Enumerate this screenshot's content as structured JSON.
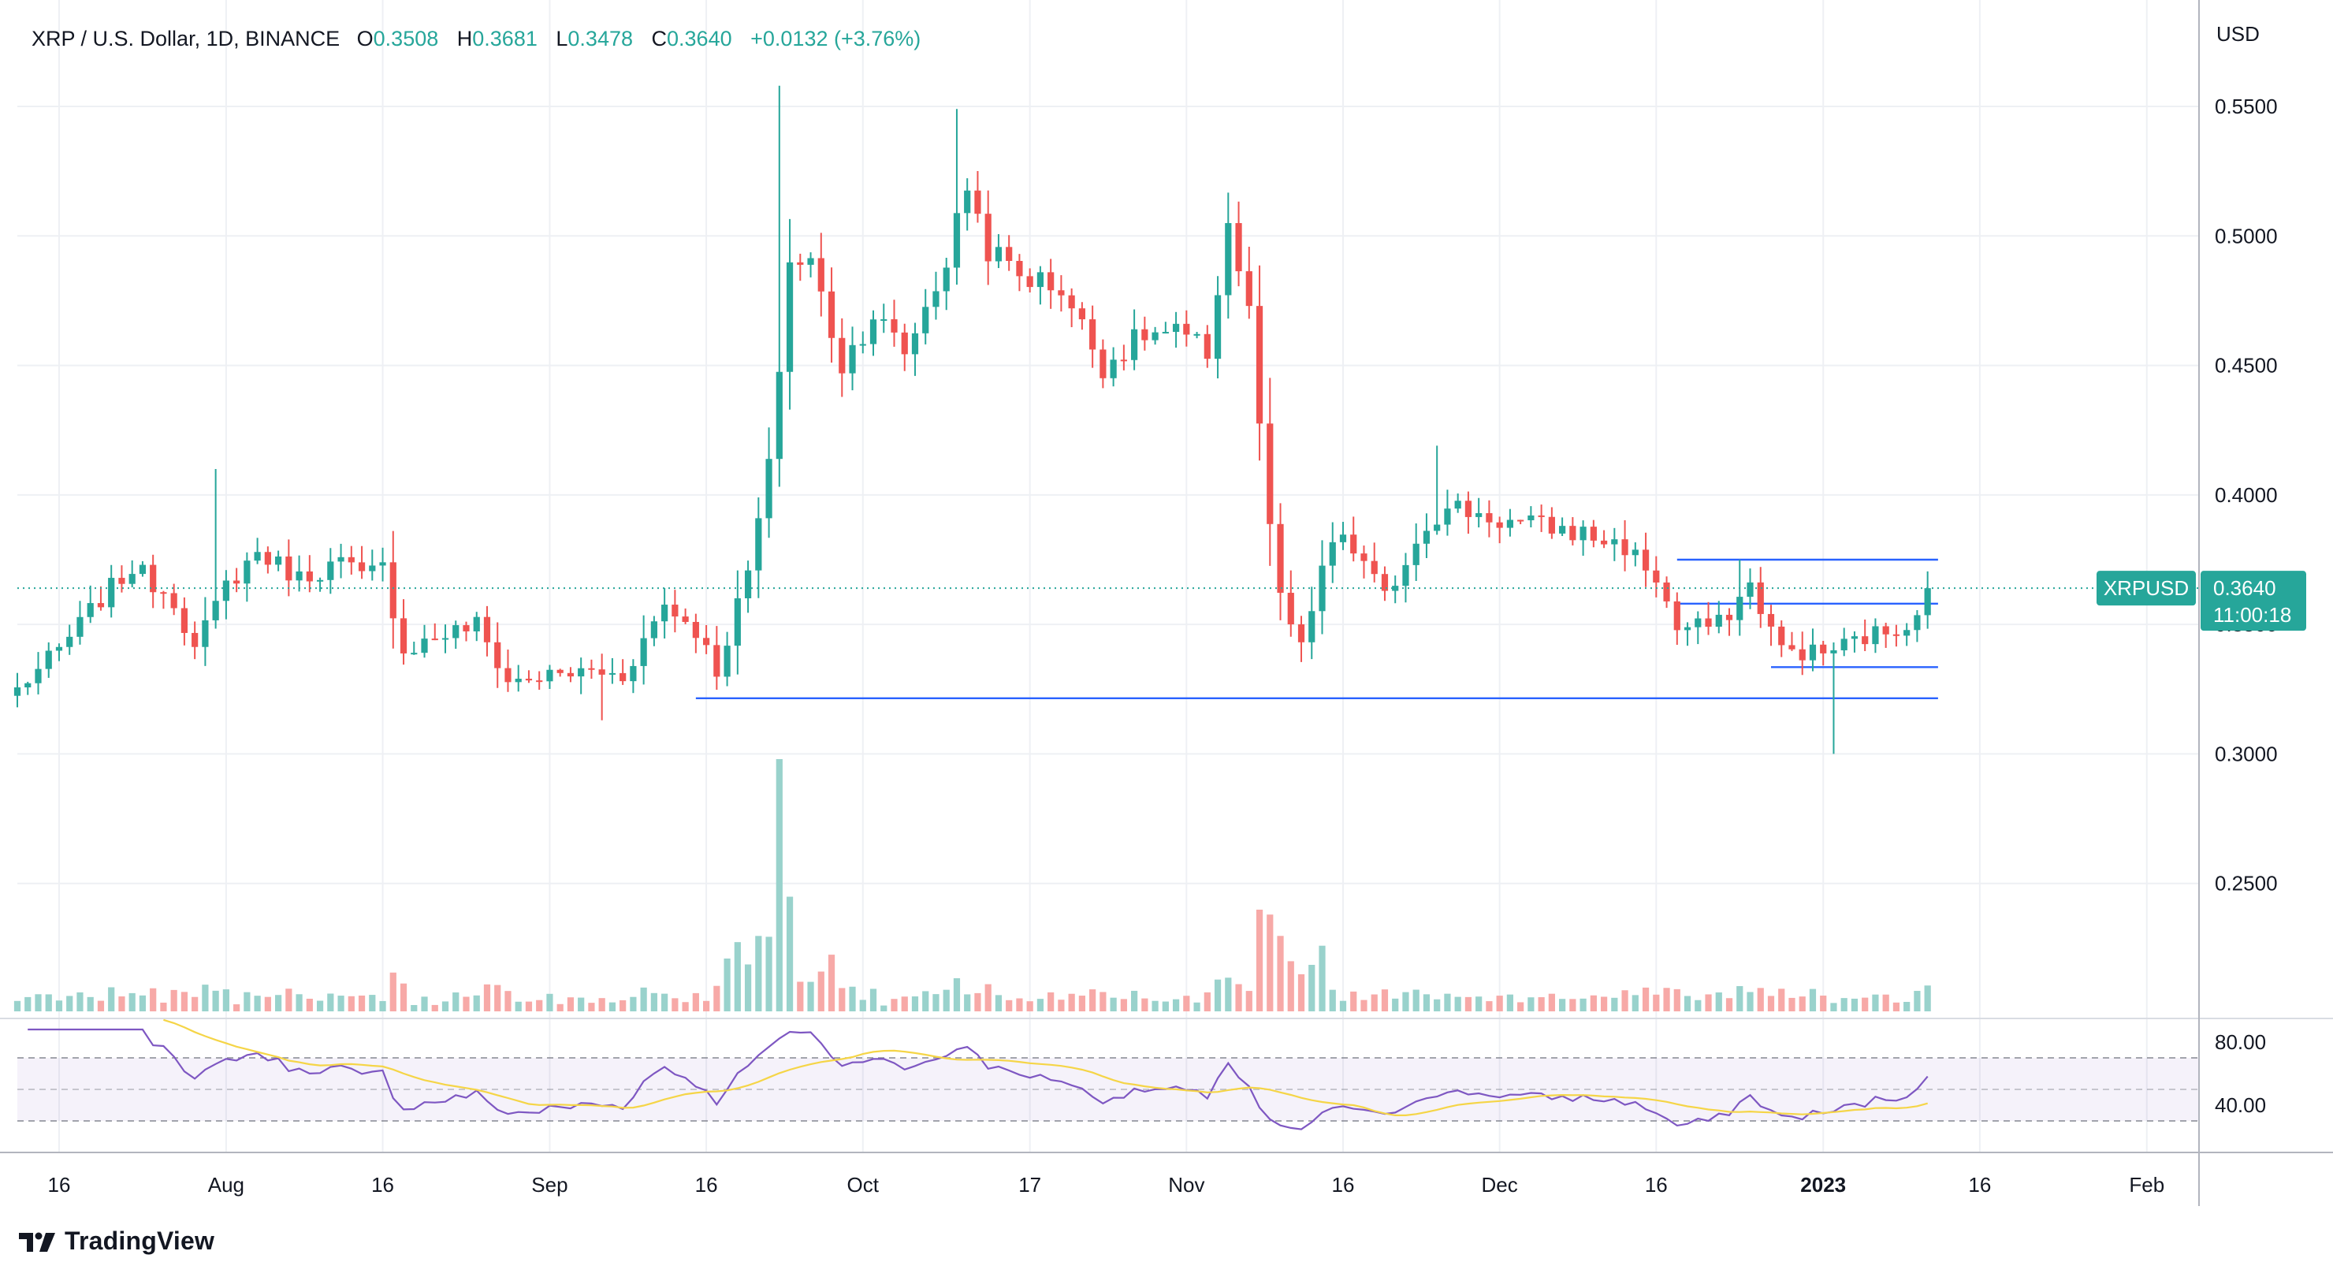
{
  "header": {
    "symbol": "XRP / U.S. Dollar, 1D, BINANCE",
    "o_label": "O",
    "o": "0.3508",
    "h_label": "H",
    "h": "0.3681",
    "l_label": "L",
    "l": "0.3478",
    "c_label": "C",
    "c": "0.3640",
    "change": "+0.0132 (+3.76%)"
  },
  "brand": {
    "name": "TradingView"
  },
  "colors": {
    "up": "#26a69a",
    "down": "#ef5350",
    "vol_up": "#99d2cc",
    "vol_down": "#f7a9a7",
    "rsi": "#7e57c2",
    "rsi_ma": "#f5d547",
    "trendline": "#2962ff",
    "grid": "#eef0f4",
    "text": "#131722"
  },
  "chart_data": {
    "type": "candlestick",
    "currency": "USD",
    "price_label": {
      "ticker": "XRPUSD",
      "value": "0.3640",
      "countdown": "11:00:18"
    },
    "y_ticks": [
      "0.5500",
      "0.5000",
      "0.4500",
      "0.4000",
      "0.3500",
      "0.3000",
      "0.2500"
    ],
    "ylim": [
      0.2,
      0.585
    ],
    "x_ticks": [
      {
        "label": "16",
        "date": "2022-07-16"
      },
      {
        "label": "Aug",
        "date": "2022-08-01"
      },
      {
        "label": "16",
        "date": "2022-08-16"
      },
      {
        "label": "Sep",
        "date": "2022-09-01"
      },
      {
        "label": "16",
        "date": "2022-09-16"
      },
      {
        "label": "Oct",
        "date": "2022-10-01"
      },
      {
        "label": "17",
        "date": "2022-10-17"
      },
      {
        "label": "Nov",
        "date": "2022-11-01"
      },
      {
        "label": "16",
        "date": "2022-11-16"
      },
      {
        "label": "Dec",
        "date": "2022-12-01"
      },
      {
        "label": "16",
        "date": "2022-12-16"
      },
      {
        "label": "2023",
        "date": "2023-01-01",
        "bold": true
      },
      {
        "label": "16",
        "date": "2023-01-16"
      },
      {
        "label": "Feb",
        "date": "2023-02-01"
      }
    ],
    "x_range": [
      "2022-07-12",
      "2023-02-06"
    ],
    "last_price": 0.364,
    "trendlines": [
      {
        "start": "2022-09-15",
        "end": "2023-01-12",
        "value": 0.3215
      },
      {
        "start": "2022-12-18",
        "end": "2023-01-12",
        "value": 0.375
      },
      {
        "start": "2022-12-18",
        "end": "2023-01-12",
        "value": 0.358
      },
      {
        "start": "2022-12-27",
        "end": "2023-01-12",
        "value": 0.3335
      }
    ],
    "rsi": {
      "ticks": [
        "80.00",
        "40.00"
      ],
      "ylim": [
        10,
        90
      ],
      "band": [
        30,
        70
      ]
    },
    "anchors": [
      {
        "date": "2022-07-12",
        "price": 0.325
      },
      {
        "date": "2022-07-16",
        "price": 0.34
      },
      {
        "date": "2022-07-20",
        "price": 0.36
      },
      {
        "date": "2022-07-23",
        "price": 0.372
      },
      {
        "date": "2022-07-27",
        "price": 0.36
      },
      {
        "date": "2022-07-29",
        "price": 0.34
      },
      {
        "date": "2022-08-01",
        "price": 0.365
      },
      {
        "date": "2022-08-04",
        "price": 0.378
      },
      {
        "date": "2022-08-08",
        "price": 0.368
      },
      {
        "date": "2022-08-12",
        "price": 0.374
      },
      {
        "date": "2022-08-14",
        "price": 0.368
      },
      {
        "date": "2022-08-16",
        "price": 0.372
      },
      {
        "date": "2022-08-18",
        "price": 0.34
      },
      {
        "date": "2022-08-21",
        "price": 0.345
      },
      {
        "date": "2022-08-25",
        "price": 0.35
      },
      {
        "date": "2022-08-28",
        "price": 0.328
      },
      {
        "date": "2022-09-01",
        "price": 0.33
      },
      {
        "date": "2022-09-05",
        "price": 0.332
      },
      {
        "date": "2022-09-08",
        "price": 0.33
      },
      {
        "date": "2022-09-12",
        "price": 0.358
      },
      {
        "date": "2022-09-15",
        "price": 0.348
      },
      {
        "date": "2022-09-17",
        "price": 0.332
      },
      {
        "date": "2022-09-20",
        "price": 0.37
      },
      {
        "date": "2022-09-22",
        "price": 0.41
      },
      {
        "date": "2022-09-24",
        "price": 0.49
      },
      {
        "date": "2022-09-26",
        "price": 0.49
      },
      {
        "date": "2022-09-29",
        "price": 0.45
      },
      {
        "date": "2022-10-02",
        "price": 0.47
      },
      {
        "date": "2022-10-05",
        "price": 0.455
      },
      {
        "date": "2022-10-09",
        "price": 0.49
      },
      {
        "date": "2022-10-11",
        "price": 0.52
      },
      {
        "date": "2022-10-13",
        "price": 0.495
      },
      {
        "date": "2022-10-16",
        "price": 0.485
      },
      {
        "date": "2022-10-20",
        "price": 0.48
      },
      {
        "date": "2022-10-24",
        "price": 0.45
      },
      {
        "date": "2022-10-28",
        "price": 0.462
      },
      {
        "date": "2022-10-31",
        "price": 0.462
      },
      {
        "date": "2022-11-03",
        "price": 0.455
      },
      {
        "date": "2022-11-05",
        "price": 0.505
      },
      {
        "date": "2022-11-07",
        "price": 0.47
      },
      {
        "date": "2022-11-09",
        "price": 0.385
      },
      {
        "date": "2022-11-10",
        "price": 0.36
      },
      {
        "date": "2022-11-12",
        "price": 0.34
      },
      {
        "date": "2022-11-14",
        "price": 0.372
      },
      {
        "date": "2022-11-16",
        "price": 0.385
      },
      {
        "date": "2022-11-20",
        "price": 0.36
      },
      {
        "date": "2022-11-24",
        "price": 0.39
      },
      {
        "date": "2022-11-27",
        "price": 0.395
      },
      {
        "date": "2022-12-01",
        "price": 0.39
      },
      {
        "date": "2022-12-05",
        "price": 0.388
      },
      {
        "date": "2022-12-09",
        "price": 0.385
      },
      {
        "date": "2022-12-13",
        "price": 0.38
      },
      {
        "date": "2022-12-16",
        "price": 0.368
      },
      {
        "date": "2022-12-18",
        "price": 0.348
      },
      {
        "date": "2022-12-22",
        "price": 0.35
      },
      {
        "date": "2022-12-25",
        "price": 0.365
      },
      {
        "date": "2022-12-28",
        "price": 0.34
      },
      {
        "date": "2023-01-01",
        "price": 0.339
      },
      {
        "date": "2023-01-05",
        "price": 0.345
      },
      {
        "date": "2023-01-09",
        "price": 0.35
      },
      {
        "date": "2023-01-11",
        "price": 0.364
      }
    ]
  }
}
